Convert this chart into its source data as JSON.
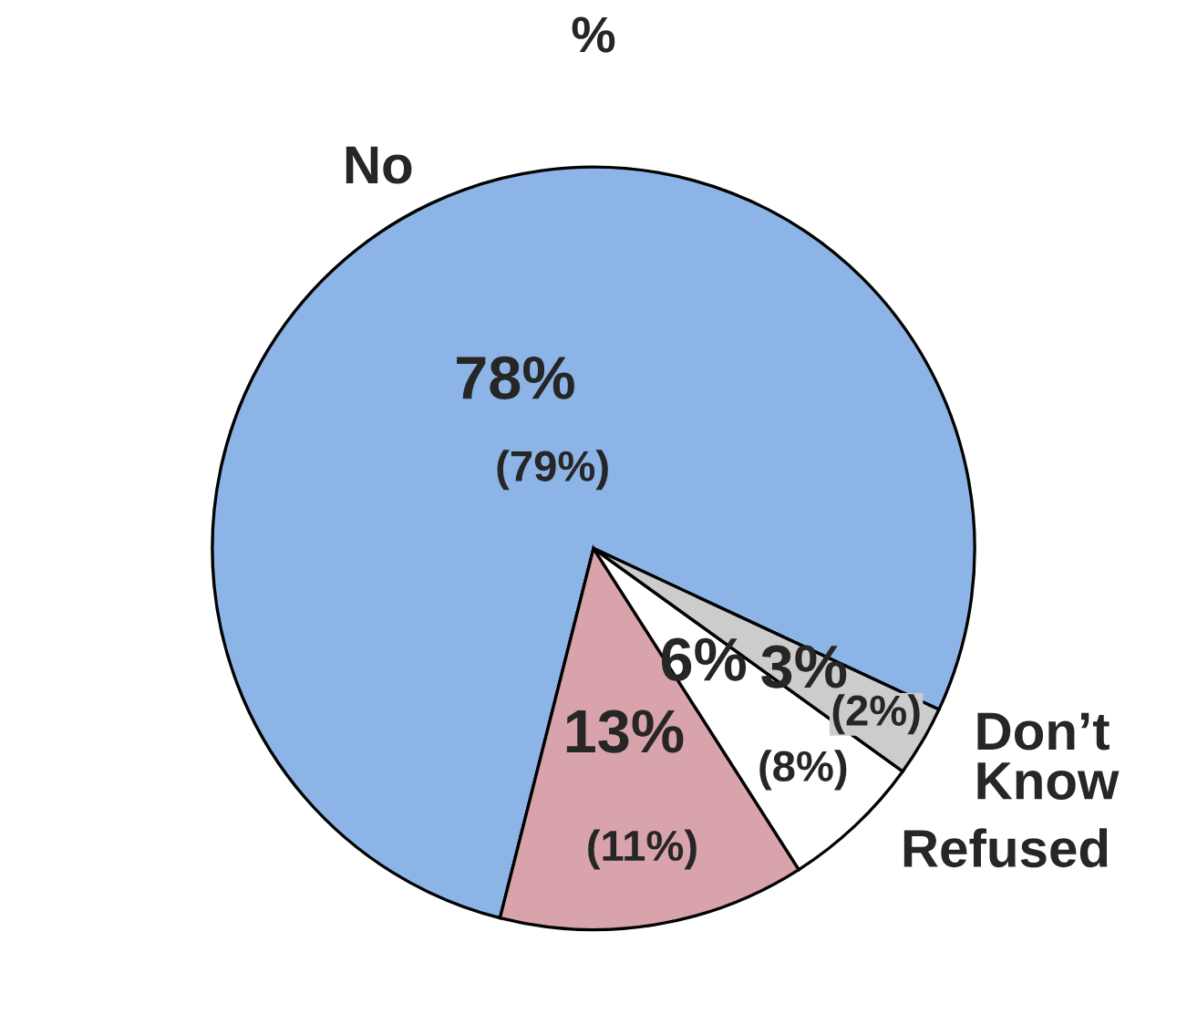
{
  "chart_data": {
    "type": "pie",
    "title": "%",
    "categories": [
      "No",
      null,
      "Refused",
      "Don’t\nKnow"
    ],
    "values": [
      78,
      13,
      6,
      3
    ],
    "colors": [
      "#8cb4e6",
      "#d9a3ab",
      "#ffffff",
      "#cccccc"
    ],
    "value_labels": [
      "78%",
      "13%",
      "6%",
      "3%"
    ],
    "annotations": [
      "(79%)",
      "(11%)",
      "(8%)",
      "(2%)"
    ]
  }
}
